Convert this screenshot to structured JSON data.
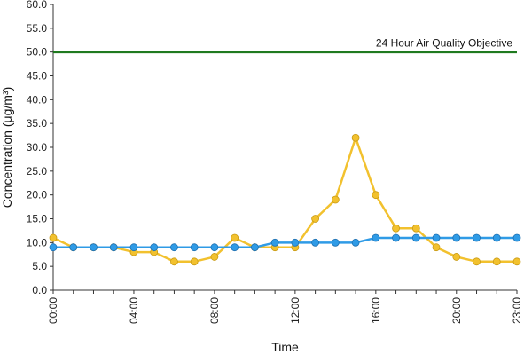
{
  "chart_data": {
    "type": "line",
    "xlabel": "Time",
    "ylabel": "Concentration (μg/m³)",
    "x": [
      "00:00",
      "01:00",
      "02:00",
      "03:00",
      "04:00",
      "05:00",
      "06:00",
      "07:00",
      "08:00",
      "09:00",
      "10:00",
      "11:00",
      "12:00",
      "13:00",
      "14:00",
      "15:00",
      "16:00",
      "17:00",
      "18:00",
      "19:00",
      "20:00",
      "21:00",
      "22:00",
      "23:00"
    ],
    "x_tick_labels": [
      "00:00",
      "04:00",
      "08:00",
      "12:00",
      "16:00",
      "20:00",
      "23:00"
    ],
    "ylim": [
      0,
      60
    ],
    "y_tick_labels": [
      "0.0",
      "5.0",
      "10.0",
      "15.0",
      "20.0",
      "25.0",
      "30.0",
      "35.0",
      "40.0",
      "45.0",
      "50.0",
      "55.0",
      "60.0"
    ],
    "grid": false,
    "legend": "none",
    "series": [
      {
        "color": "#f2c12e",
        "values": [
          11,
          9,
          9,
          9,
          8,
          8,
          6,
          6,
          7,
          11,
          9,
          9,
          9,
          15,
          19,
          32,
          20,
          13,
          13,
          9,
          7,
          6,
          6,
          6
        ]
      },
      {
        "color": "#2f9be6",
        "values": [
          9,
          9,
          9,
          9,
          9,
          9,
          9,
          9,
          9,
          9,
          9,
          10,
          10,
          10,
          10,
          10,
          11,
          11,
          11,
          11,
          11,
          11,
          11,
          11
        ]
      }
    ],
    "reference_line": {
      "value": 50,
      "label": "24 Hour Air Quality Objective",
      "color": "#1f7a1f"
    }
  }
}
